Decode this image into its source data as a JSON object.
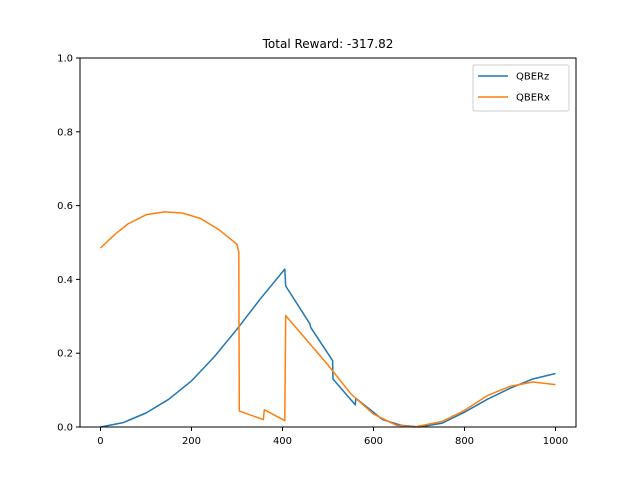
{
  "chart_data": {
    "type": "line",
    "title": "Total Reward: -317.82",
    "xlabel": "",
    "ylabel": "",
    "xlim": [
      -45,
      1045
    ],
    "ylim": [
      0,
      1.0
    ],
    "xticks": [
      0,
      200,
      400,
      600,
      800,
      1000
    ],
    "yticks": [
      0.0,
      0.2,
      0.4,
      0.6,
      0.8,
      1.0
    ],
    "xtick_labels": [
      "0",
      "200",
      "400",
      "600",
      "800",
      "1000"
    ],
    "ytick_labels": [
      "0.0",
      "0.2",
      "0.4",
      "0.6",
      "0.8",
      "1.0"
    ],
    "grid": false,
    "legend_position": "top-right",
    "series": [
      {
        "name": "QBERz",
        "color": "#1f77b4",
        "points": [
          [
            0,
            0.0
          ],
          [
            50,
            0.012
          ],
          [
            100,
            0.038
          ],
          [
            150,
            0.075
          ],
          [
            200,
            0.125
          ],
          [
            250,
            0.19
          ],
          [
            300,
            0.265
          ],
          [
            350,
            0.345
          ],
          [
            405,
            0.428
          ],
          [
            407,
            0.382
          ],
          [
            460,
            0.28
          ],
          [
            462,
            0.27
          ],
          [
            510,
            0.18
          ],
          [
            511,
            0.13
          ],
          [
            560,
            0.06
          ],
          [
            561,
            0.078
          ],
          [
            620,
            0.02
          ],
          [
            660,
            0.005
          ],
          [
            700,
            0.0
          ],
          [
            750,
            0.01
          ],
          [
            800,
            0.04
          ],
          [
            850,
            0.075
          ],
          [
            900,
            0.105
          ],
          [
            950,
            0.13
          ],
          [
            1000,
            0.145
          ]
        ]
      },
      {
        "name": "QBERx",
        "color": "#ff7f0e",
        "points": [
          [
            0,
            0.485
          ],
          [
            30,
            0.52
          ],
          [
            60,
            0.55
          ],
          [
            100,
            0.575
          ],
          [
            140,
            0.583
          ],
          [
            180,
            0.58
          ],
          [
            220,
            0.565
          ],
          [
            260,
            0.535
          ],
          [
            300,
            0.495
          ],
          [
            304,
            0.473
          ],
          [
            305,
            0.043
          ],
          [
            358,
            0.02
          ],
          [
            360,
            0.047
          ],
          [
            405,
            0.017
          ],
          [
            407,
            0.302
          ],
          [
            450,
            0.24
          ],
          [
            500,
            0.168
          ],
          [
            550,
            0.09
          ],
          [
            600,
            0.035
          ],
          [
            650,
            0.005
          ],
          [
            690,
            0.0
          ],
          [
            750,
            0.015
          ],
          [
            800,
            0.045
          ],
          [
            850,
            0.085
          ],
          [
            900,
            0.11
          ],
          [
            950,
            0.122
          ],
          [
            1000,
            0.115
          ]
        ]
      }
    ]
  }
}
